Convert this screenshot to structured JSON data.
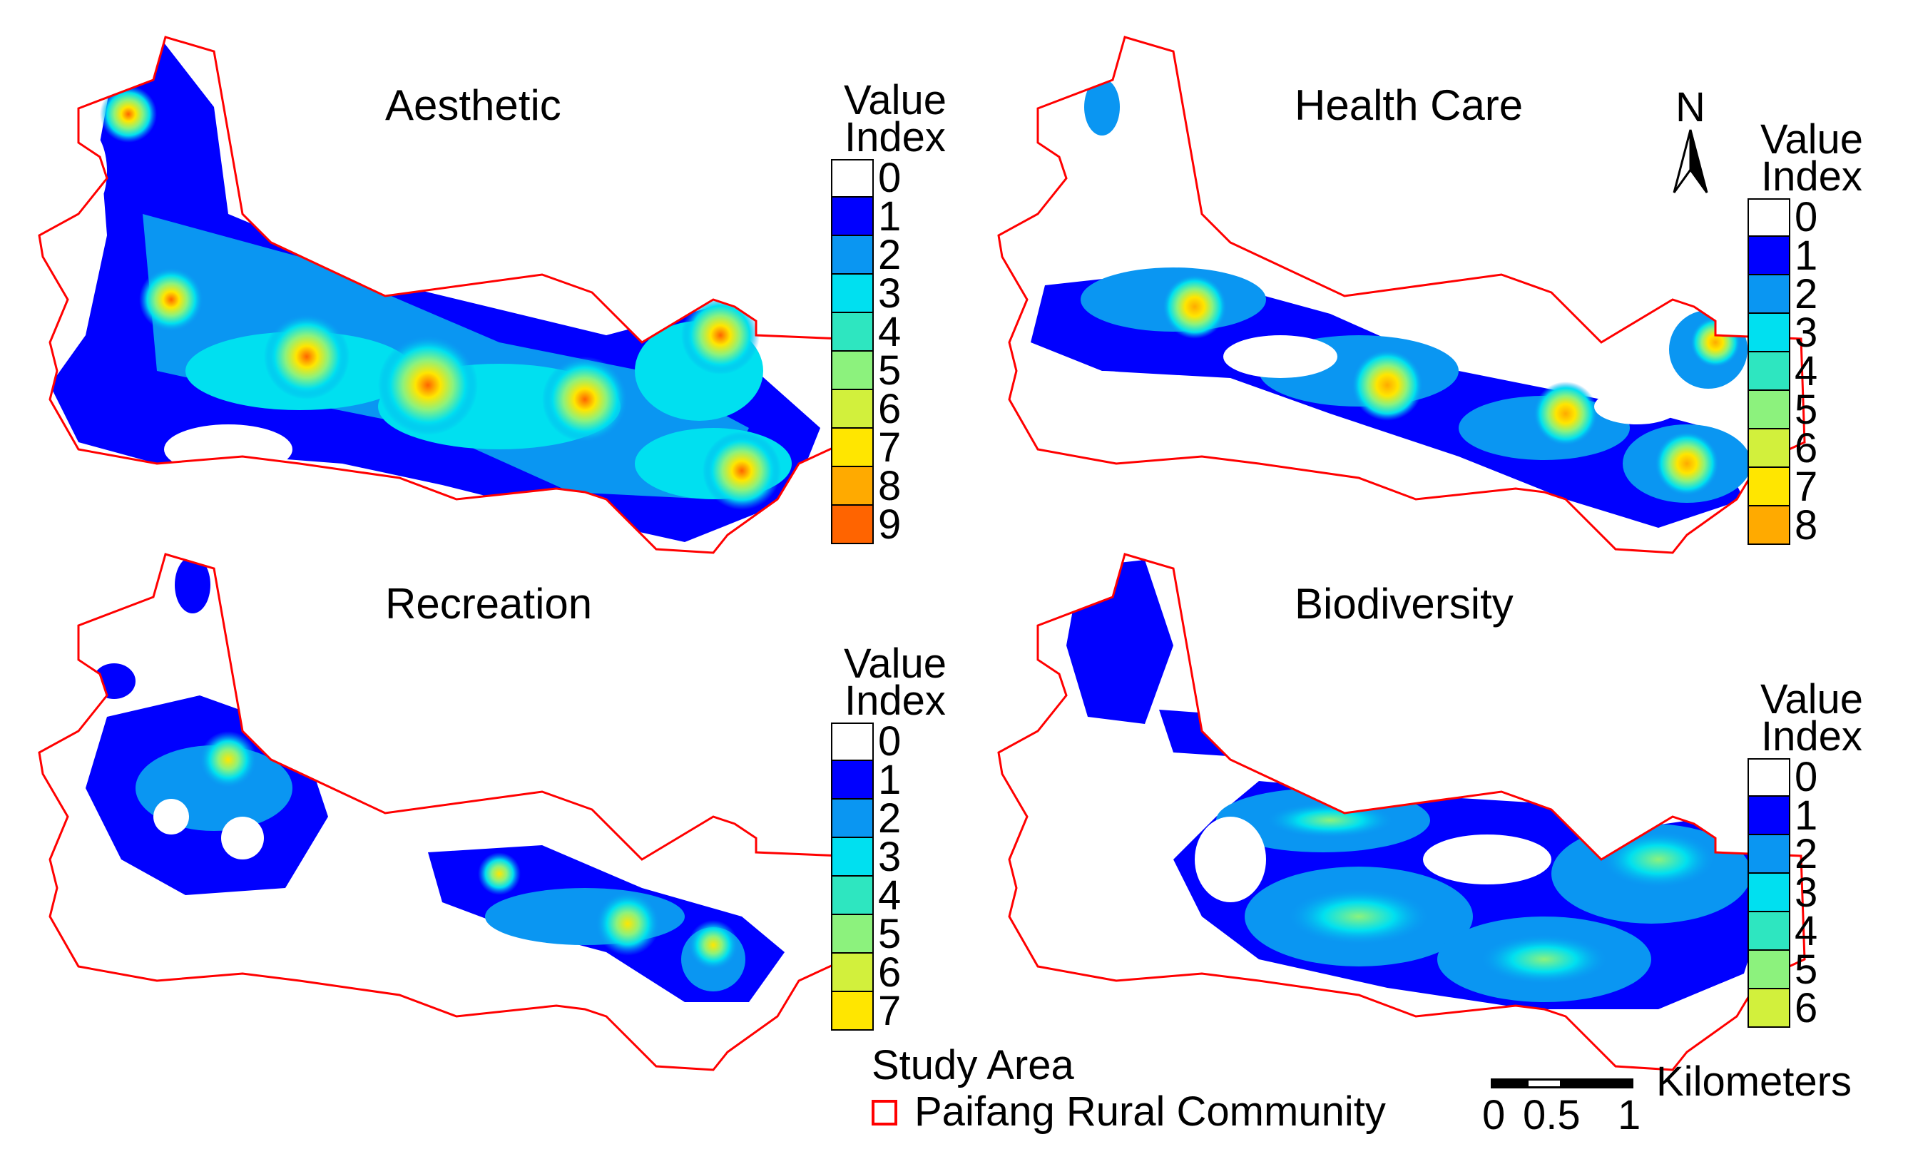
{
  "panels": [
    {
      "title": "Aesthetic",
      "legend": {
        "title_line1": "Value",
        "title_line2": "Index",
        "classes": [
          {
            "label": "0",
            "color": "#ffffff"
          },
          {
            "label": "1",
            "color": "#0000ff"
          },
          {
            "label": "2",
            "color": "#0a96f2"
          },
          {
            "label": "3",
            "color": "#00e0f0"
          },
          {
            "label": "4",
            "color": "#2ee6c0"
          },
          {
            "label": "5",
            "color": "#8cf27d"
          },
          {
            "label": "6",
            "color": "#d2f03c"
          },
          {
            "label": "7",
            "color": "#ffe600"
          },
          {
            "label": "8",
            "color": "#ffaa00"
          },
          {
            "label": "9",
            "color": "#ff6400"
          }
        ]
      }
    },
    {
      "title": "Health Care",
      "legend": {
        "title_line1": "Value",
        "title_line2": "Index",
        "classes": [
          {
            "label": "0",
            "color": "#ffffff"
          },
          {
            "label": "1",
            "color": "#0000ff"
          },
          {
            "label": "2",
            "color": "#0a96f2"
          },
          {
            "label": "3",
            "color": "#00e0f0"
          },
          {
            "label": "4",
            "color": "#2ee6c0"
          },
          {
            "label": "5",
            "color": "#8cf27d"
          },
          {
            "label": "6",
            "color": "#d2f03c"
          },
          {
            "label": "7",
            "color": "#ffe600"
          },
          {
            "label": "8",
            "color": "#ffaa00"
          }
        ]
      }
    },
    {
      "title": "Recreation",
      "legend": {
        "title_line1": "Value",
        "title_line2": "Index",
        "classes": [
          {
            "label": "0",
            "color": "#ffffff"
          },
          {
            "label": "1",
            "color": "#0000ff"
          },
          {
            "label": "2",
            "color": "#0a96f2"
          },
          {
            "label": "3",
            "color": "#00e0f0"
          },
          {
            "label": "4",
            "color": "#2ee6c0"
          },
          {
            "label": "5",
            "color": "#8cf27d"
          },
          {
            "label": "6",
            "color": "#d2f03c"
          },
          {
            "label": "7",
            "color": "#ffe600"
          }
        ]
      }
    },
    {
      "title": "Biodiversity",
      "legend": {
        "title_line1": "Value",
        "title_line2": "Index",
        "classes": [
          {
            "label": "0",
            "color": "#ffffff"
          },
          {
            "label": "1",
            "color": "#0000ff"
          },
          {
            "label": "2",
            "color": "#0a96f2"
          },
          {
            "label": "3",
            "color": "#00e0f0"
          },
          {
            "label": "4",
            "color": "#2ee6c0"
          },
          {
            "label": "5",
            "color": "#8cf27d"
          },
          {
            "label": "6",
            "color": "#d2f03c"
          }
        ]
      }
    }
  ],
  "north_arrow": {
    "label": "N"
  },
  "study_area": {
    "heading": "Study Area",
    "item": "Paifang Rural Community",
    "outline_color": "#ff0000"
  },
  "scale_bar": {
    "ticks": [
      "0",
      "0.5",
      "1"
    ],
    "unit": "Kilometers"
  }
}
